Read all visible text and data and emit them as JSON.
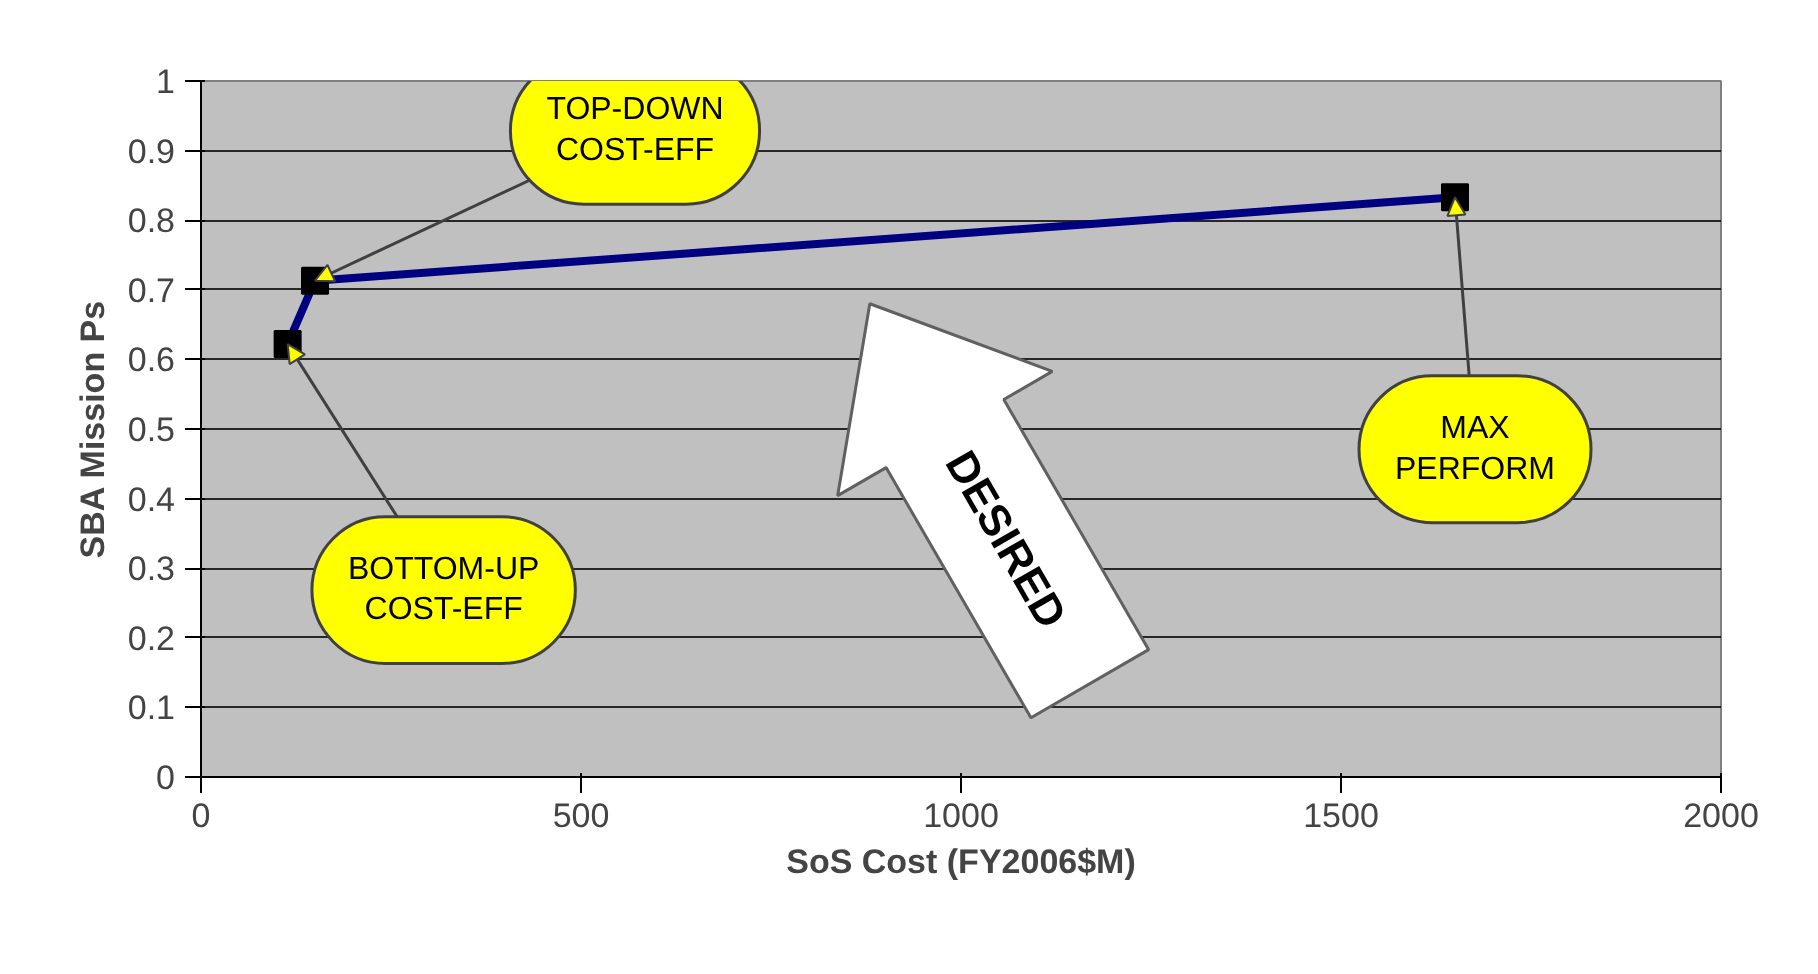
{
  "chart_data": {
    "type": "line",
    "xlabel": "SoS Cost (FY2006$M)",
    "ylabel": "SBA Mission Ps",
    "x": [
      114,
      150,
      1650
    ],
    "series": [
      {
        "color": "#000080",
        "values": [
          0.622,
          0.713,
          0.833
        ]
      }
    ],
    "xlim": [
      0,
      2000
    ],
    "xticks": [
      0,
      500,
      1000,
      1500,
      2000
    ],
    "ylim": [
      0,
      1
    ],
    "yticks": [
      0,
      0.1,
      0.2,
      0.3,
      0.4,
      0.5,
      0.6,
      0.7,
      0.8,
      0.9,
      1
    ],
    "grid": "y",
    "marker": "square",
    "line_style": "solid",
    "annotations": [
      {
        "text": "BOTTOM-UP\nCOST-EFF",
        "x": 114,
        "y": 0.622
      },
      {
        "text": "TOP-DOWN\nCOST-EFF",
        "x": 150,
        "y": 0.713
      },
      {
        "text": "MAX\nPERFORM",
        "x": 1650,
        "y": 0.833
      },
      "DESIRED"
    ]
  }
}
